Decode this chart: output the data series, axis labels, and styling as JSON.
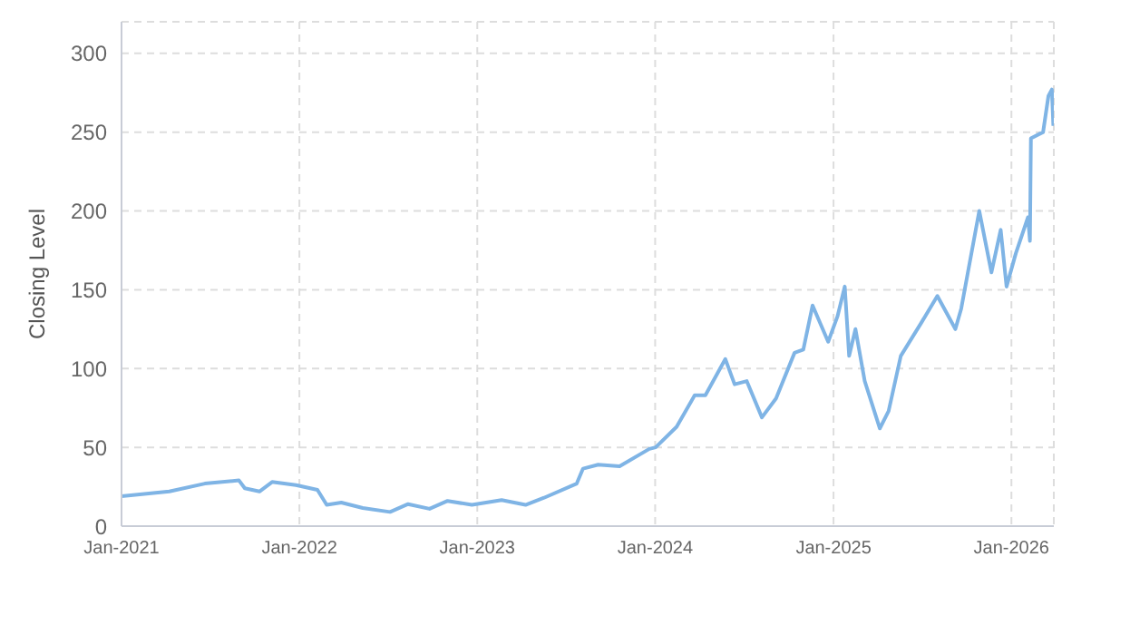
{
  "chart_data": {
    "type": "line",
    "ylabel": "Closing Level",
    "grid": true,
    "marker": "none",
    "line_style": "solid",
    "xlim": [
      "2021-01-01",
      "2026-03-29"
    ],
    "xticks": [
      {
        "value": "2021-01-01",
        "label": "Jan-2021"
      },
      {
        "value": "2022-01-01",
        "label": "Jan-2022"
      },
      {
        "value": "2023-01-01",
        "label": "Jan-2023"
      },
      {
        "value": "2024-01-01",
        "label": "Jan-2024"
      },
      {
        "value": "2025-01-01",
        "label": "Jan-2025"
      },
      {
        "value": "2026-01-01",
        "label": "Jan-2026"
      }
    ],
    "ylim": [
      0,
      320
    ],
    "yticks": [
      0,
      50,
      100,
      150,
      200,
      250,
      300
    ],
    "x": [
      "2021-01-01",
      "2021-04-09",
      "2021-06-21",
      "2021-08-30",
      "2021-09-11",
      "2021-10-11",
      "2021-11-06",
      "2021-12-25",
      "2022-02-07",
      "2022-02-26",
      "2022-03-28",
      "2022-05-11",
      "2022-07-06",
      "2022-08-12",
      "2022-09-25",
      "2022-11-01",
      "2022-12-21",
      "2023-02-20",
      "2023-04-10",
      "2023-05-18",
      "2023-07-24",
      "2023-08-06",
      "2023-09-06",
      "2023-10-20",
      "2023-12-20",
      "2024-01-02",
      "2024-02-14",
      "2024-03-22",
      "2024-04-13",
      "2024-05-24",
      "2024-06-12",
      "2024-07-07",
      "2024-08-07",
      "2024-09-05",
      "2024-10-13",
      "2024-10-31",
      "2024-11-19",
      "2024-12-21",
      "2025-01-09",
      "2025-01-24",
      "2025-02-02",
      "2025-02-15",
      "2025-03-06",
      "2025-04-06",
      "2025-04-24",
      "2025-05-19",
      "2025-06-30",
      "2025-08-02",
      "2025-09-08",
      "2025-09-20",
      "2025-10-27",
      "2025-11-21",
      "2025-12-10",
      "2025-12-22",
      "2026-01-10",
      "2026-02-04",
      "2026-02-08",
      "2026-02-10",
      "2026-03-07",
      "2026-03-18",
      "2026-03-25",
      "2026-03-28"
    ],
    "series": [
      {
        "color": "#7fb4e5",
        "values": [
          19,
          22,
          27,
          29,
          24,
          22,
          28,
          26,
          23,
          13.5,
          15,
          11.5,
          9,
          14,
          11,
          16,
          13.5,
          16.5,
          13.5,
          18,
          27,
          36.5,
          39,
          38,
          49,
          50,
          63,
          83,
          83,
          106,
          90,
          92,
          69,
          81,
          110,
          112,
          140,
          117,
          133,
          152,
          108,
          125,
          92,
          62,
          73,
          108,
          129,
          146,
          125,
          138,
          200,
          161,
          188,
          152,
          173,
          196,
          181,
          246,
          250,
          273,
          277,
          254
        ]
      }
    ]
  }
}
